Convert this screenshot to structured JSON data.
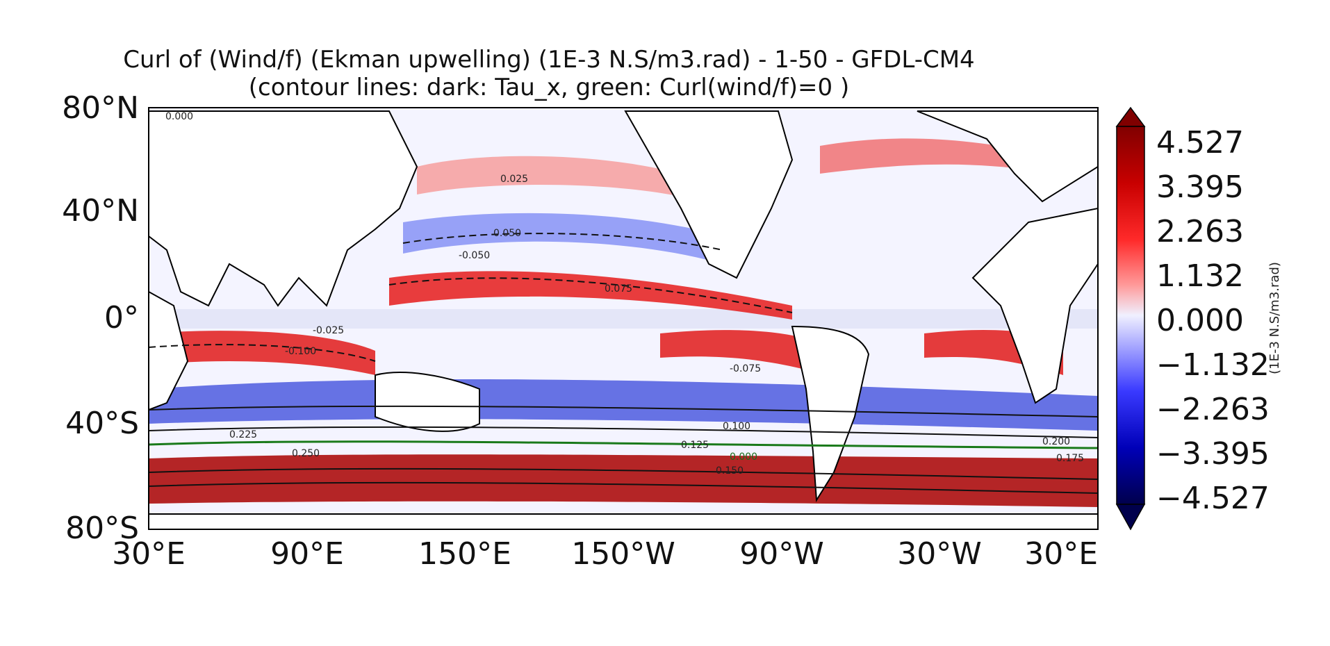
{
  "title": {
    "line1": "Curl of (Wind/f) (Ekman upwelling) (1E-3 N.S/m3.rad) - 1-50 - GFDL-CM4",
    "line2": "(contour lines: dark: Tau_x, green: Curl(wind/f)=0 )"
  },
  "axes": {
    "y_ticks": [
      "80°N",
      "40°N",
      "0°",
      "40°S",
      "80°S"
    ],
    "x_ticks": [
      "30°E",
      "90°E",
      "150°E",
      "150°W",
      "90°W",
      "30°W",
      "30°E"
    ]
  },
  "colorbar": {
    "label": "(1E-3 N.S/m3.rad)",
    "ticks": [
      "4.527",
      "3.395",
      "2.263",
      "1.132",
      "0.000",
      "−1.132",
      "−2.263",
      "−3.395",
      "−4.527"
    ],
    "range": [
      -4.527,
      4.527
    ],
    "extend": "both",
    "colormap": "seismic",
    "colors": {
      "low": "#00004c",
      "mid": "#f0f0ff",
      "high": "#800000"
    }
  },
  "contour_labels": [
    {
      "text": "0.000",
      "color": "dark"
    },
    {
      "text": "0.025",
      "color": "dark"
    },
    {
      "text": "0.050",
      "color": "dark"
    },
    {
      "text": "0.075",
      "color": "dark"
    },
    {
      "text": "0.100",
      "color": "dark"
    },
    {
      "text": "0.125",
      "color": "dark"
    },
    {
      "text": "0.150",
      "color": "dark"
    },
    {
      "text": "0.175",
      "color": "dark"
    },
    {
      "text": "0.200",
      "color": "dark"
    },
    {
      "text": "0.225",
      "color": "dark"
    },
    {
      "text": "0.250",
      "color": "dark"
    },
    {
      "text": "-0.025",
      "color": "dark"
    },
    {
      "text": "-0.050",
      "color": "dark"
    },
    {
      "text": "-0.075",
      "color": "dark"
    },
    {
      "text": "-0.100",
      "color": "dark"
    },
    {
      "text": "0.000",
      "color": "green"
    }
  ]
}
